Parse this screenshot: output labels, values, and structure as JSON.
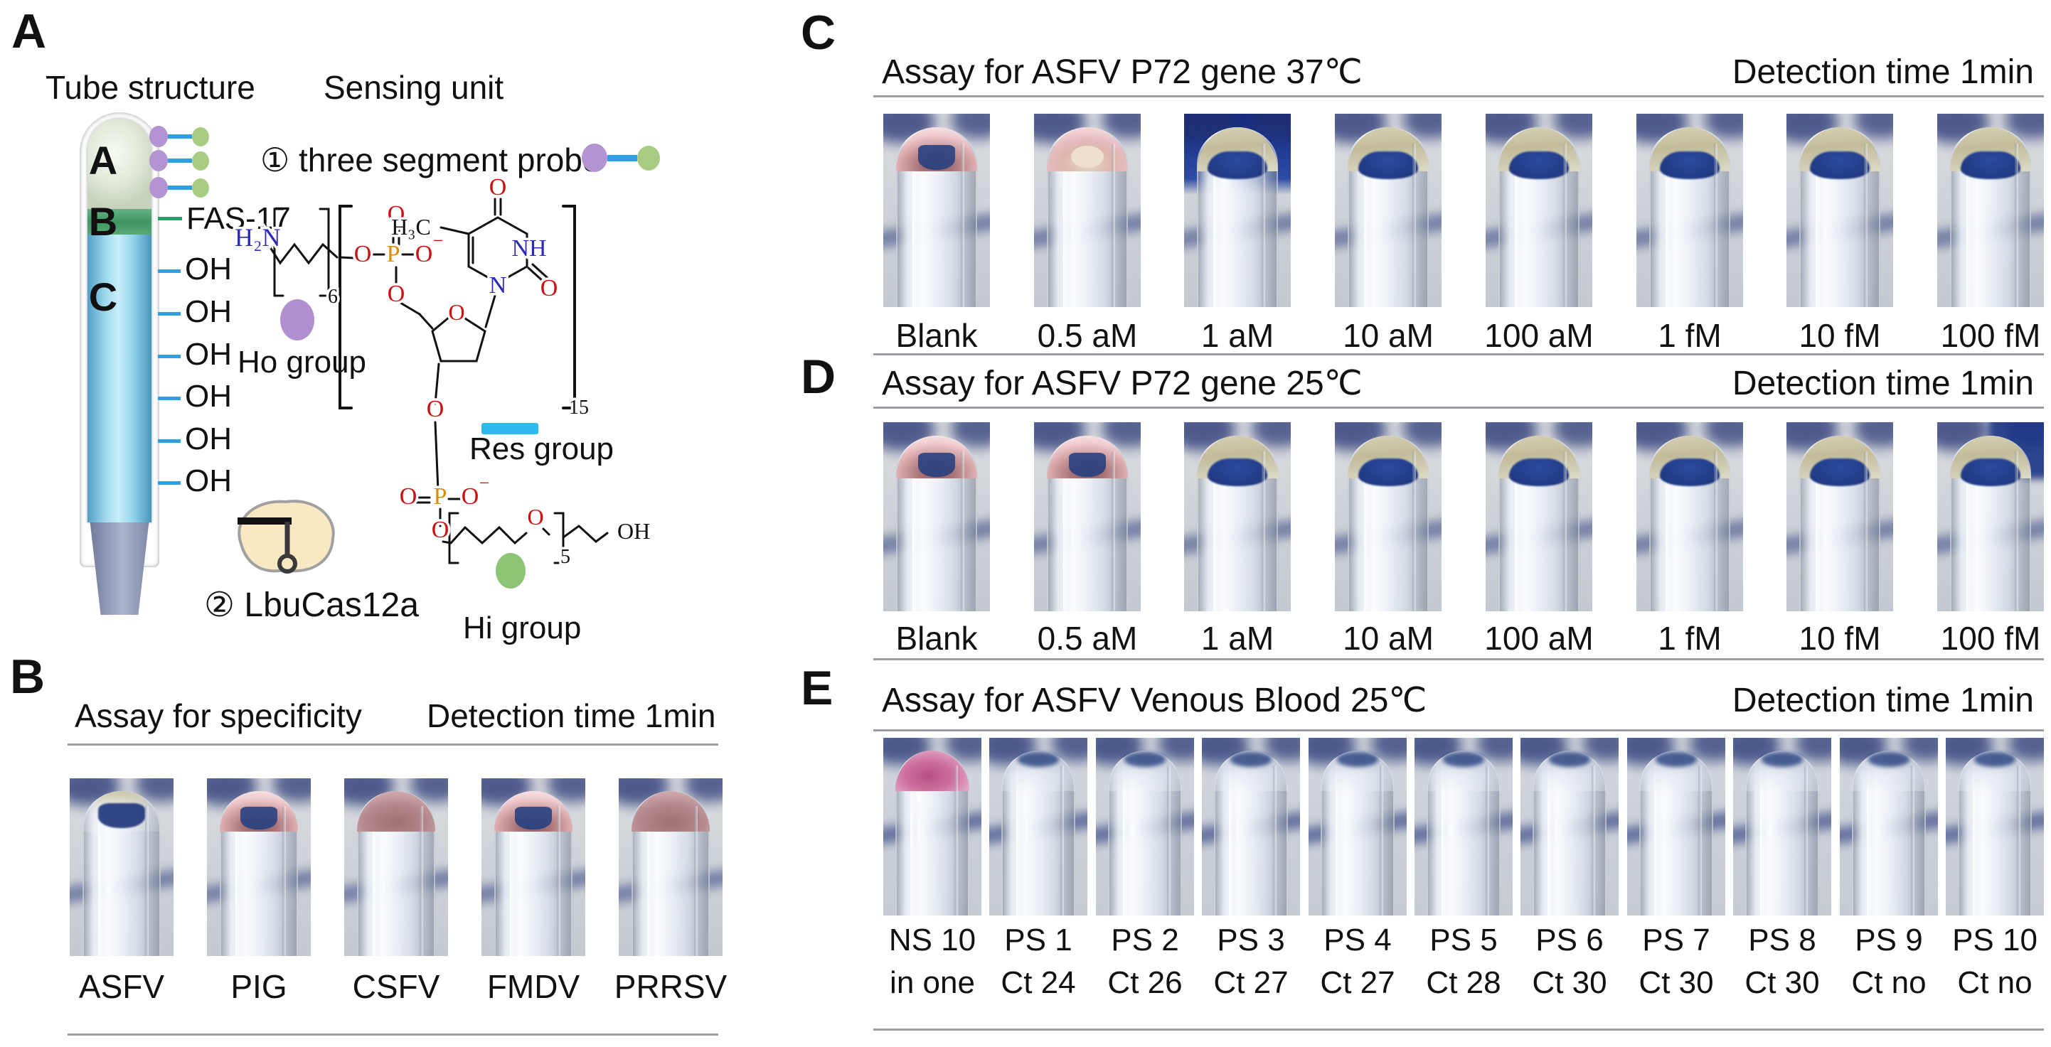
{
  "figure": {
    "type": "multi-panel scientific figure",
    "colors": {
      "navy_background": "#1f3170",
      "khaki_tip": "#c8c2a4",
      "pink_tip": "#c89296",
      "bright_pink_tip": "#c95f92",
      "res_cyan": "#2cb9ec",
      "ho_purple": "#b18fd0",
      "hi_green": "#8cc474",
      "tube_blue": "#7fc8e8",
      "tube_green_band": "#3f9560"
    }
  },
  "panels": {
    "a": {
      "letter": "A",
      "headings": {
        "tube": "Tube structure",
        "sensing": "Sensing unit"
      },
      "tube": {
        "sections": [
          "A",
          "B",
          "C"
        ],
        "fas": "FAS-17",
        "oh": [
          "OH",
          "OH",
          "OH",
          "OH",
          "OH",
          "OH"
        ]
      },
      "probe_title": "① three segment probe",
      "cas": "② LbuCas12a",
      "groups": {
        "ho": "Ho group",
        "res": "Res group",
        "hi": "Hi group"
      },
      "chem": {
        "labels": [
          "H₂N",
          "6",
          "O",
          "P",
          "O",
          "−",
          "O",
          "O",
          "H₃C",
          "O",
          "NH",
          "N",
          "O",
          "O",
          "15",
          "O",
          "O",
          "P",
          "O",
          "−",
          "O",
          "O",
          "5",
          "OH"
        ]
      }
    },
    "b": {
      "letter": "B",
      "title": "Assay for specificity",
      "detection": "Detection time 1min",
      "tubes": [
        {
          "label": "ASFV",
          "tip": "clear"
        },
        {
          "label": "PIG",
          "tip": "pink"
        },
        {
          "label": "CSFV",
          "tip": "pinksolid"
        },
        {
          "label": "FMDV",
          "tip": "pink"
        },
        {
          "label": "PRRSV",
          "tip": "pinksolid"
        }
      ]
    },
    "c": {
      "letter": "C",
      "title": "Assay for ASFV P72 gene 37℃",
      "detection": "Detection time 1min",
      "tubes": [
        {
          "label": "Blank",
          "tip": "pink"
        },
        {
          "label": "0.5 aM",
          "tip": "pinkpale"
        },
        {
          "label": "1 aM",
          "tip": "khaki",
          "bg": "dark"
        },
        {
          "label": "10 aM",
          "tip": "khaki"
        },
        {
          "label": "100 aM",
          "tip": "khaki"
        },
        {
          "label": "1 fM",
          "tip": "khaki"
        },
        {
          "label": "10 fM",
          "tip": "khaki"
        },
        {
          "label": "100 fM",
          "tip": "khaki"
        }
      ]
    },
    "d": {
      "letter": "D",
      "title": "Assay for ASFV P72 gene 25℃",
      "detection": "Detection time 1min",
      "tubes": [
        {
          "label": "Blank",
          "tip": "pink"
        },
        {
          "label": "0.5 aM",
          "tip": "pink"
        },
        {
          "label": "1 aM",
          "tip": "khaki"
        },
        {
          "label": "10 aM",
          "tip": "khaki"
        },
        {
          "label": "100 aM",
          "tip": "khaki"
        },
        {
          "label": "1 fM",
          "tip": "khaki"
        },
        {
          "label": "10 fM",
          "tip": "khaki"
        },
        {
          "label": "100 fM",
          "tip": "khaki",
          "bg": "corner"
        }
      ]
    },
    "e": {
      "letter": "E",
      "title": "Assay for ASFV Venous Blood 25℃",
      "detection": "Detection time 1min",
      "tubes": [
        {
          "label": "NS 10",
          "sublabel": "in one",
          "tip": "pinkbright"
        },
        {
          "label": "PS 1",
          "sublabel": "Ct 24",
          "tip": "blue"
        },
        {
          "label": "PS 2",
          "sublabel": "Ct 26",
          "tip": "blue"
        },
        {
          "label": "PS 3",
          "sublabel": "Ct 27",
          "tip": "blue"
        },
        {
          "label": "PS 4",
          "sublabel": "Ct 27",
          "tip": "blue"
        },
        {
          "label": "PS 5",
          "sublabel": "Ct 28",
          "tip": "blue"
        },
        {
          "label": "PS 6",
          "sublabel": "Ct 30",
          "tip": "blue"
        },
        {
          "label": "PS 7",
          "sublabel": "Ct 30",
          "tip": "blue"
        },
        {
          "label": "PS 8",
          "sublabel": "Ct 30",
          "tip": "blue"
        },
        {
          "label": "PS 9",
          "sublabel": "Ct no",
          "tip": "blue"
        },
        {
          "label": "PS 10",
          "sublabel": "Ct no",
          "tip": "blue"
        }
      ]
    }
  }
}
